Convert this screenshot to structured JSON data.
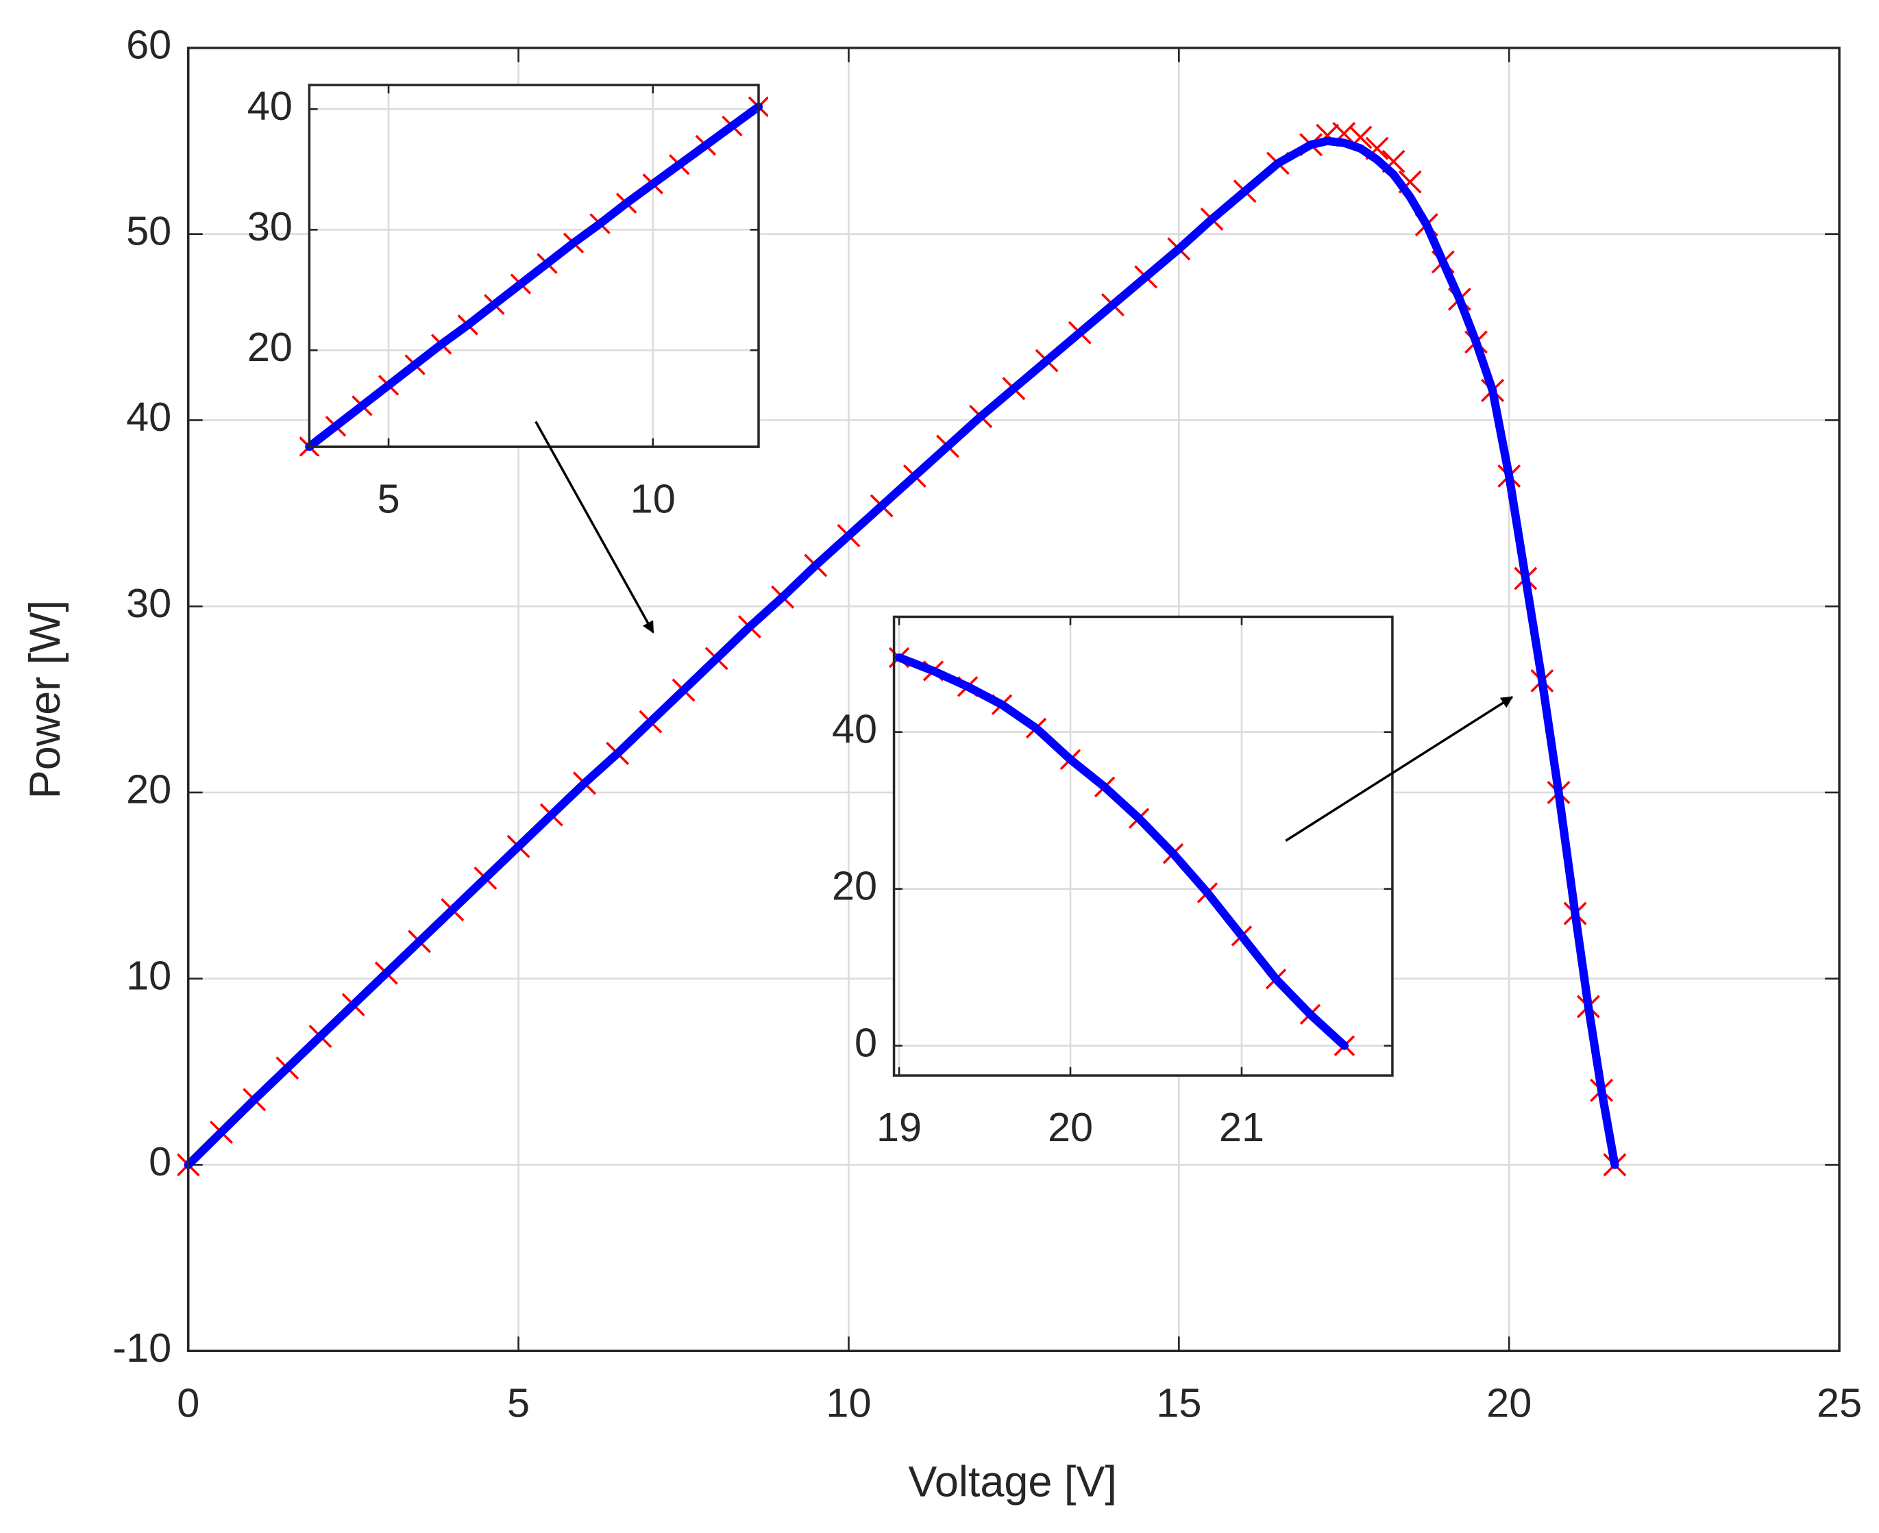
{
  "chart_data": [
    {
      "type": "line",
      "xlabel": "Voltage [V]",
      "ylabel": "Power [W]",
      "xlim": [
        0,
        25
      ],
      "ylim": [
        -10,
        60
      ],
      "xticks": [
        0,
        5,
        10,
        15,
        20,
        25
      ],
      "yticks": [
        -10,
        0,
        10,
        20,
        30,
        40,
        50,
        60
      ],
      "grid": true,
      "x": [
        0,
        0.5,
        1,
        1.5,
        2,
        2.5,
        3,
        3.5,
        4,
        4.5,
        5,
        5.5,
        6,
        6.5,
        7,
        7.5,
        8,
        8.5,
        9,
        9.5,
        10,
        10.5,
        11,
        11.5,
        12,
        12.5,
        13,
        13.5,
        14,
        14.5,
        15,
        15.5,
        16,
        16.5,
        17,
        17.25,
        17.5,
        17.75,
        18,
        18.25,
        18.5,
        18.75,
        19,
        19.25,
        19.5,
        19.75,
        20,
        20.25,
        20.5,
        20.75,
        21,
        21.2,
        21.4,
        21.6
      ],
      "series": [
        {
          "color": "#ff0000",
          "marker": "x",
          "values": [
            0,
            1.75,
            3.5,
            5.2,
            6.9,
            8.6,
            10.3,
            12.0,
            13.7,
            15.4,
            17.1,
            18.8,
            20.5,
            22.1,
            23.8,
            25.5,
            27.2,
            28.9,
            30.5,
            32.2,
            33.8,
            35.4,
            37.0,
            38.6,
            40.2,
            41.7,
            43.2,
            44.7,
            46.2,
            47.7,
            49.2,
            50.8,
            52.3,
            53.8,
            54.8,
            55.3,
            55.4,
            55.2,
            54.6,
            53.9,
            52.8,
            50.5,
            48.5,
            46.5,
            44.2,
            41.6,
            37.0,
            31.5,
            26.0,
            20.0,
            13.5,
            8.5,
            4.0,
            0
          ]
        },
        {
          "color": "#0000ff",
          "marker": "none",
          "values": [
            0,
            1.75,
            3.5,
            5.2,
            6.9,
            8.6,
            10.3,
            12.0,
            13.7,
            15.4,
            17.1,
            18.8,
            20.5,
            22.1,
            23.8,
            25.5,
            27.2,
            28.9,
            30.5,
            32.2,
            33.8,
            35.4,
            37.0,
            38.6,
            40.2,
            41.7,
            43.2,
            44.7,
            46.2,
            47.7,
            49.2,
            50.8,
            52.3,
            53.8,
            54.8,
            55.0,
            54.9,
            54.6,
            54.0,
            53.2,
            52.0,
            50.5,
            48.5,
            46.5,
            44.2,
            41.6,
            37.0,
            31.5,
            26.0,
            20.0,
            13.5,
            8.5,
            4.0,
            0
          ]
        }
      ]
    },
    {
      "type": "line",
      "xlim": [
        3.5,
        12
      ],
      "ylim": [
        12,
        42
      ],
      "xticks": [
        5,
        10
      ],
      "yticks": [
        20,
        30,
        40
      ],
      "grid": true,
      "x": [
        3.5,
        4,
        4.5,
        5,
        5.5,
        6,
        6.5,
        7,
        7.5,
        8,
        8.5,
        9,
        9.5,
        10,
        10.5,
        11,
        11.5,
        12
      ],
      "series": [
        {
          "color": "#ff0000",
          "marker": "x",
          "values": [
            12.0,
            13.7,
            15.4,
            17.1,
            18.8,
            20.5,
            22.1,
            23.8,
            25.5,
            27.2,
            28.9,
            30.5,
            32.2,
            33.8,
            35.4,
            37.0,
            38.6,
            40.2
          ]
        },
        {
          "color": "#0000ff",
          "marker": "none",
          "values": [
            12.0,
            13.7,
            15.4,
            17.1,
            18.8,
            20.5,
            22.1,
            23.8,
            25.5,
            27.2,
            28.9,
            30.5,
            32.2,
            33.8,
            35.4,
            37.0,
            38.6,
            40.2
          ]
        }
      ]
    },
    {
      "type": "line",
      "xlim": [
        18.97,
        21.88
      ],
      "ylim": [
        -3.8,
        54.7
      ],
      "xticks": [
        19,
        20,
        21
      ],
      "yticks": [
        0,
        20,
        40
      ],
      "grid": true,
      "x": [
        19,
        19.2,
        19.4,
        19.6,
        19.8,
        20,
        20.2,
        20.4,
        20.6,
        20.8,
        21,
        21.2,
        21.4,
        21.6
      ],
      "series": [
        {
          "color": "#ff0000",
          "marker": "x",
          "values": [
            49.5,
            47.8,
            45.8,
            43.5,
            40.5,
            36.5,
            33,
            29,
            24.5,
            19.5,
            14,
            8.5,
            4.0,
            0
          ]
        },
        {
          "color": "#0000ff",
          "marker": "none",
          "values": [
            49.5,
            47.8,
            45.8,
            43.5,
            40.5,
            36.5,
            33,
            29,
            24.5,
            19.5,
            14,
            8.5,
            4.0,
            0
          ]
        }
      ]
    }
  ]
}
